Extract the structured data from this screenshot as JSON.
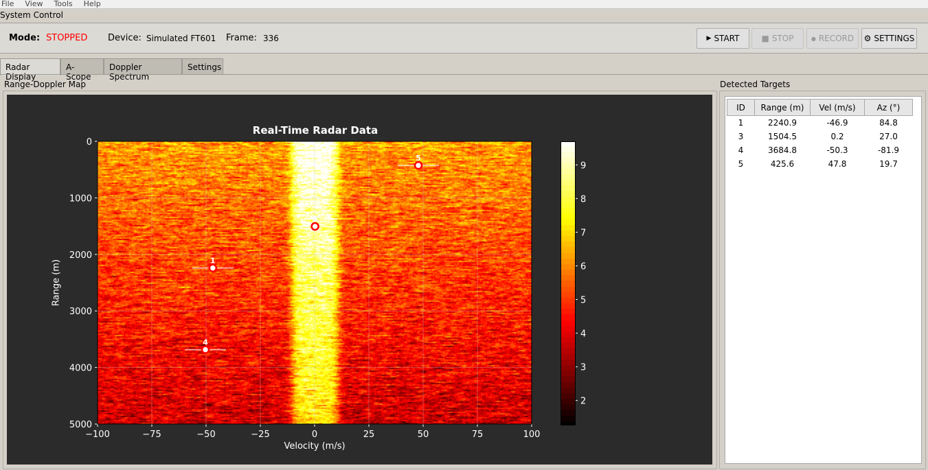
{
  "menu": [
    "File",
    "View",
    "Tools",
    "Help"
  ],
  "system_control_label": "System Control",
  "status": {
    "mode_label": "Mode:",
    "mode_value": "STOPPED",
    "mode_color": "#ff0000",
    "device_label": "Device:",
    "device_value": "Simulated FT601",
    "frame_label": "Frame:",
    "frame_value": "336"
  },
  "buttons": {
    "start": "START",
    "stop": "STOP",
    "record": "RECORD",
    "settings": "SETTINGS",
    "start_icon": "▶",
    "stop_icon": "■",
    "record_icon": "●",
    "settings_icon": "⚙"
  },
  "tabs": [
    "Radar Display",
    "A-Scope",
    "Doppler Spectrum",
    "Settings"
  ],
  "map_panel_label": "Range-Doppler Map",
  "targets_panel_label": "Detected Targets",
  "targets_table": {
    "columns": [
      "ID",
      "Range (m)",
      "Vel (m/s)",
      "Az (°)"
    ],
    "rows": [
      [
        "1",
        "2240.9",
        "-46.9",
        "84.8"
      ],
      [
        "3",
        "1504.5",
        "0.2",
        "27.0"
      ],
      [
        "4",
        "3684.8",
        "-50.3",
        "-81.9"
      ],
      [
        "5",
        "425.6",
        "47.8",
        "19.7"
      ]
    ]
  },
  "chart_data": {
    "type": "heatmap",
    "title": "Real-Time Radar Data",
    "xlabel": "Velocity (m/s)",
    "ylabel": "Range (m)",
    "xlim": [
      -100,
      100
    ],
    "ylim": [
      5000,
      0
    ],
    "xticks": [
      -100,
      -75,
      -50,
      -25,
      0,
      25,
      50,
      75,
      100
    ],
    "xtick_labels": [
      "−100",
      "−75",
      "−50",
      "−25",
      "0",
      "25",
      "50",
      "75",
      "100"
    ],
    "yticks": [
      0,
      1000,
      2000,
      3000,
      4000,
      5000
    ],
    "ytick_labels": [
      "0",
      "1000",
      "2000",
      "3000",
      "4000",
      "5000"
    ],
    "colormap": "hot",
    "color_range": [
      1.3,
      9.7
    ],
    "colorbar_ticks": [
      2,
      3,
      4,
      5,
      6,
      7,
      8,
      9
    ],
    "grid": true,
    "targets": [
      {
        "label": "1",
        "velocity": -46.9,
        "range": 2240.9
      },
      {
        "label": "3",
        "velocity": 0.2,
        "range": 1504.5
      },
      {
        "label": "4",
        "velocity": -50.3,
        "range": 3684.8
      },
      {
        "label": "5",
        "velocity": 47.8,
        "range": 425.6
      }
    ],
    "marker_color": "#ff0000"
  }
}
